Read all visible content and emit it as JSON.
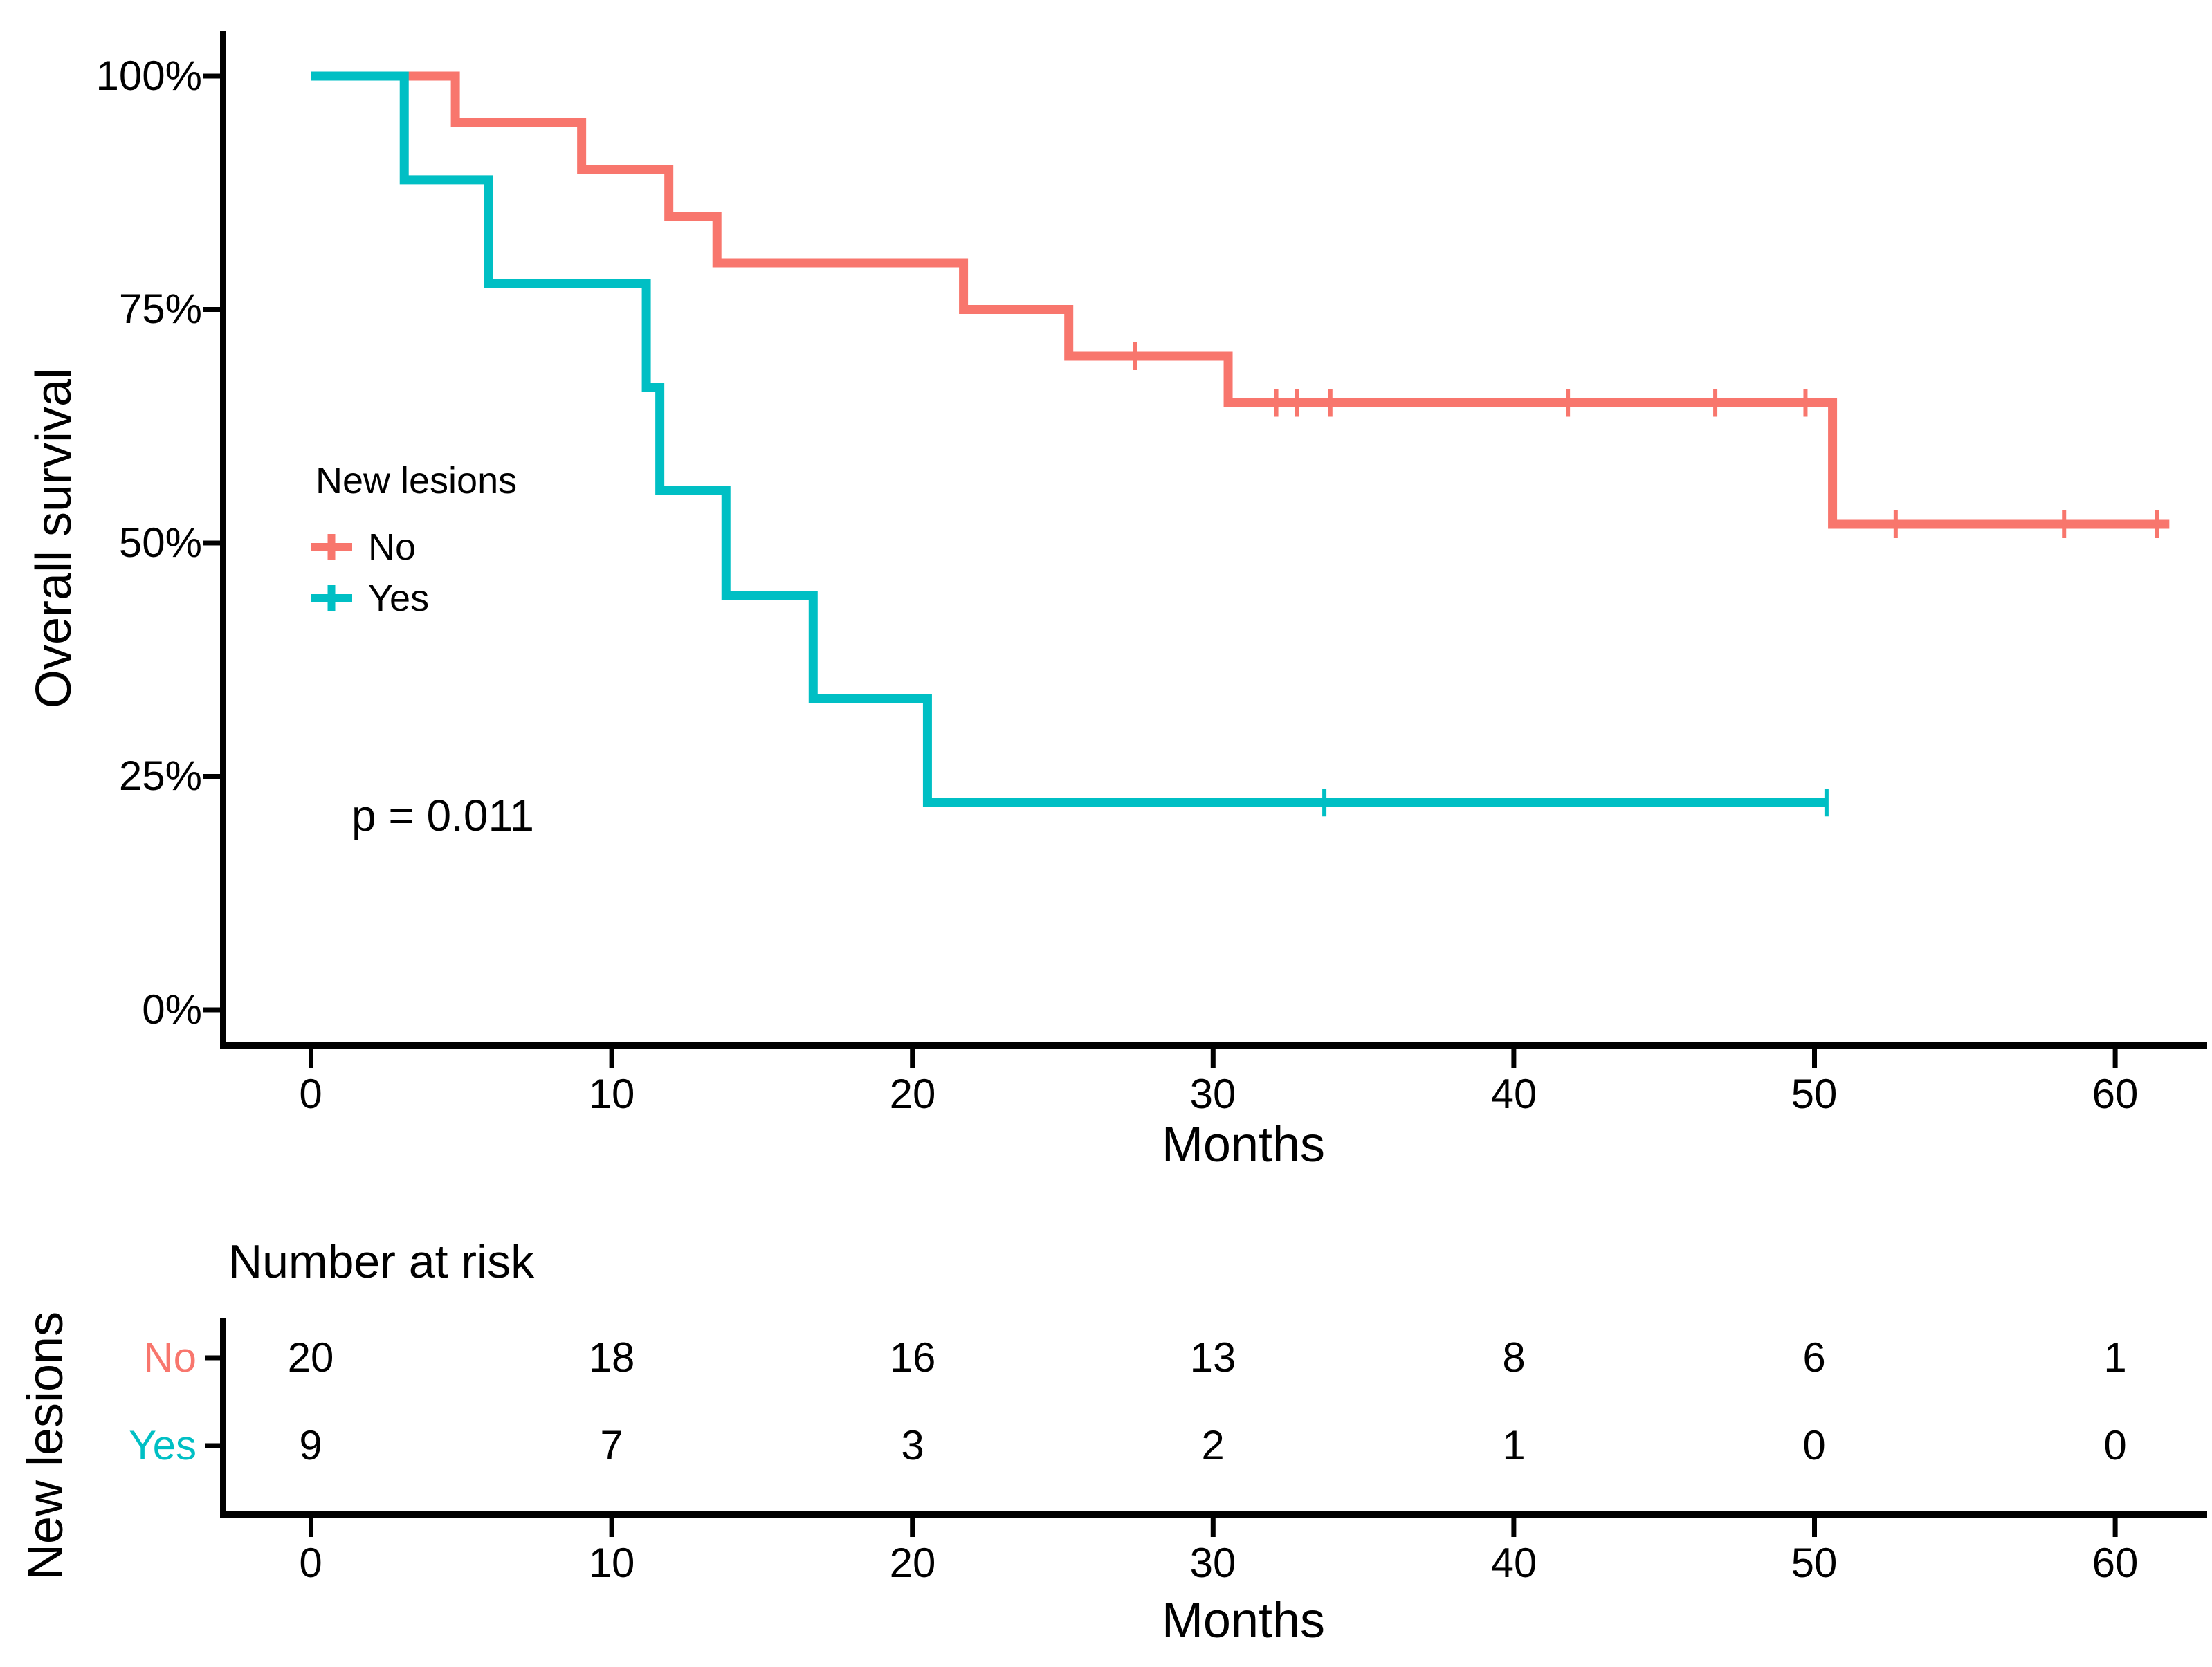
{
  "chart_data": {
    "type": "line",
    "subtype": "kaplan-meier-step",
    "xlabel": "Months",
    "ylabel": "Overall survival",
    "xlim": [
      0,
      63
    ],
    "ylim": [
      0,
      100
    ],
    "grid": false,
    "x_ticks": [
      0,
      10,
      20,
      30,
      40,
      50,
      60
    ],
    "y_ticks_pct": [
      100,
      75,
      50,
      25,
      0
    ],
    "y_tick_labels": [
      "100%",
      "75%",
      "50%",
      "25%",
      "0%"
    ],
    "pvalue_text": "p = 0.011",
    "colors": {
      "no": "#F8766D",
      "yes": "#00BFC4",
      "axis": "#000000"
    },
    "legend": {
      "title": "New lesions",
      "position": "inside-left",
      "entries": [
        {
          "label": "No",
          "color": "#F8766D"
        },
        {
          "label": "Yes",
          "color": "#00BFC4"
        }
      ]
    },
    "series": [
      {
        "name": "No",
        "color": "#F8766D",
        "start_surv": 100,
        "drop_times": [
          4.8,
          9.0,
          11.9,
          13.5,
          21.7,
          25.2,
          30.5,
          50.6
        ],
        "drop_surv": [
          95,
          90,
          85,
          80,
          75,
          70,
          65,
          52
        ],
        "end_time": 61.8,
        "censors": [
          {
            "t": 27.4,
            "s": 70
          },
          {
            "t": 32.1,
            "s": 65
          },
          {
            "t": 32.8,
            "s": 65
          },
          {
            "t": 33.9,
            "s": 65
          },
          {
            "t": 41.8,
            "s": 65
          },
          {
            "t": 46.7,
            "s": 65
          },
          {
            "t": 49.7,
            "s": 65
          },
          {
            "t": 52.7,
            "s": 52
          },
          {
            "t": 58.3,
            "s": 52
          },
          {
            "t": 61.4,
            "s": 52
          }
        ]
      },
      {
        "name": "Yes",
        "color": "#00BFC4",
        "start_surv": 100,
        "drop_times": [
          3.1,
          5.9,
          11.15,
          11.6,
          13.8,
          16.7,
          20.5
        ],
        "drop_surv": [
          88.9,
          77.8,
          66.7,
          55.6,
          44.4,
          33.3,
          22.2
        ],
        "end_time": 50.4,
        "censors": [
          {
            "t": 33.7,
            "s": 22.2
          },
          {
            "t": 50.4,
            "s": 22.2
          }
        ]
      }
    ],
    "risk_table": {
      "title": "Number at risk",
      "ylabel": "New lesions",
      "xlabel": "Months",
      "x_ticks": [
        0,
        10,
        20,
        30,
        40,
        50,
        60
      ],
      "rows": [
        {
          "label": "No",
          "color": "#F8766D",
          "counts": [
            20,
            18,
            16,
            13,
            8,
            6,
            1
          ]
        },
        {
          "label": "Yes",
          "color": "#00BFC4",
          "counts": [
            9,
            7,
            3,
            2,
            1,
            0,
            0
          ]
        }
      ]
    }
  }
}
